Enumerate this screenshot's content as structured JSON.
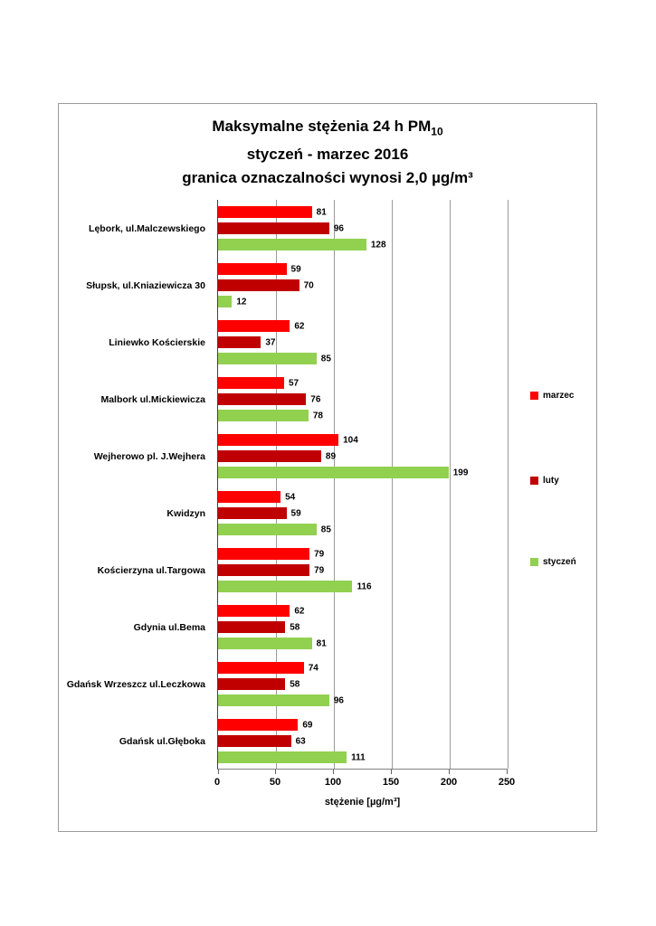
{
  "title": {
    "line1_main": "Maksymalne stężenia  24 h PM",
    "line1_sub": "10",
    "line2": "styczeń - marzec 2016",
    "line3": "granica oznaczalności wynosi 2,0 µg/m³"
  },
  "chart_data": {
    "type": "bar",
    "orientation": "horizontal",
    "title": "Maksymalne stężenia 24 h PM10, styczeń - marzec 2016, granica oznaczalności wynosi 2,0 µg/m³",
    "categories": [
      "Lębork, ul.Malczewskiego",
      "Słupsk, ul.Kniaziewicza 30",
      "Liniewko Kościerskie",
      "Malbork ul.Mickiewicza",
      "Wejherowo pl. J.Wejhera",
      "Kwidzyn",
      "Kościerzyna ul.Targowa",
      "Gdynia ul.Bema",
      "Gdańsk Wrzeszcz ul.Leczkowa",
      "Gdańsk ul.Głęboka"
    ],
    "series": [
      {
        "name": "marzec",
        "color": "#ff0000",
        "values": [
          81,
          59,
          62,
          57,
          104,
          54,
          79,
          62,
          74,
          69
        ]
      },
      {
        "name": "luty",
        "color": "#c00000",
        "values": [
          96,
          70,
          37,
          76,
          89,
          59,
          79,
          58,
          58,
          63
        ]
      },
      {
        "name": "styczeń",
        "color": "#92d050",
        "values": [
          128,
          12,
          85,
          78,
          199,
          85,
          116,
          81,
          96,
          111
        ]
      }
    ],
    "xlabel": "stężenie [µg/m³]",
    "ylabel": "",
    "xlim": [
      0,
      250
    ],
    "xticks": [
      0,
      50,
      100,
      150,
      200,
      250
    ],
    "grid": true,
    "legend_position": "right"
  }
}
